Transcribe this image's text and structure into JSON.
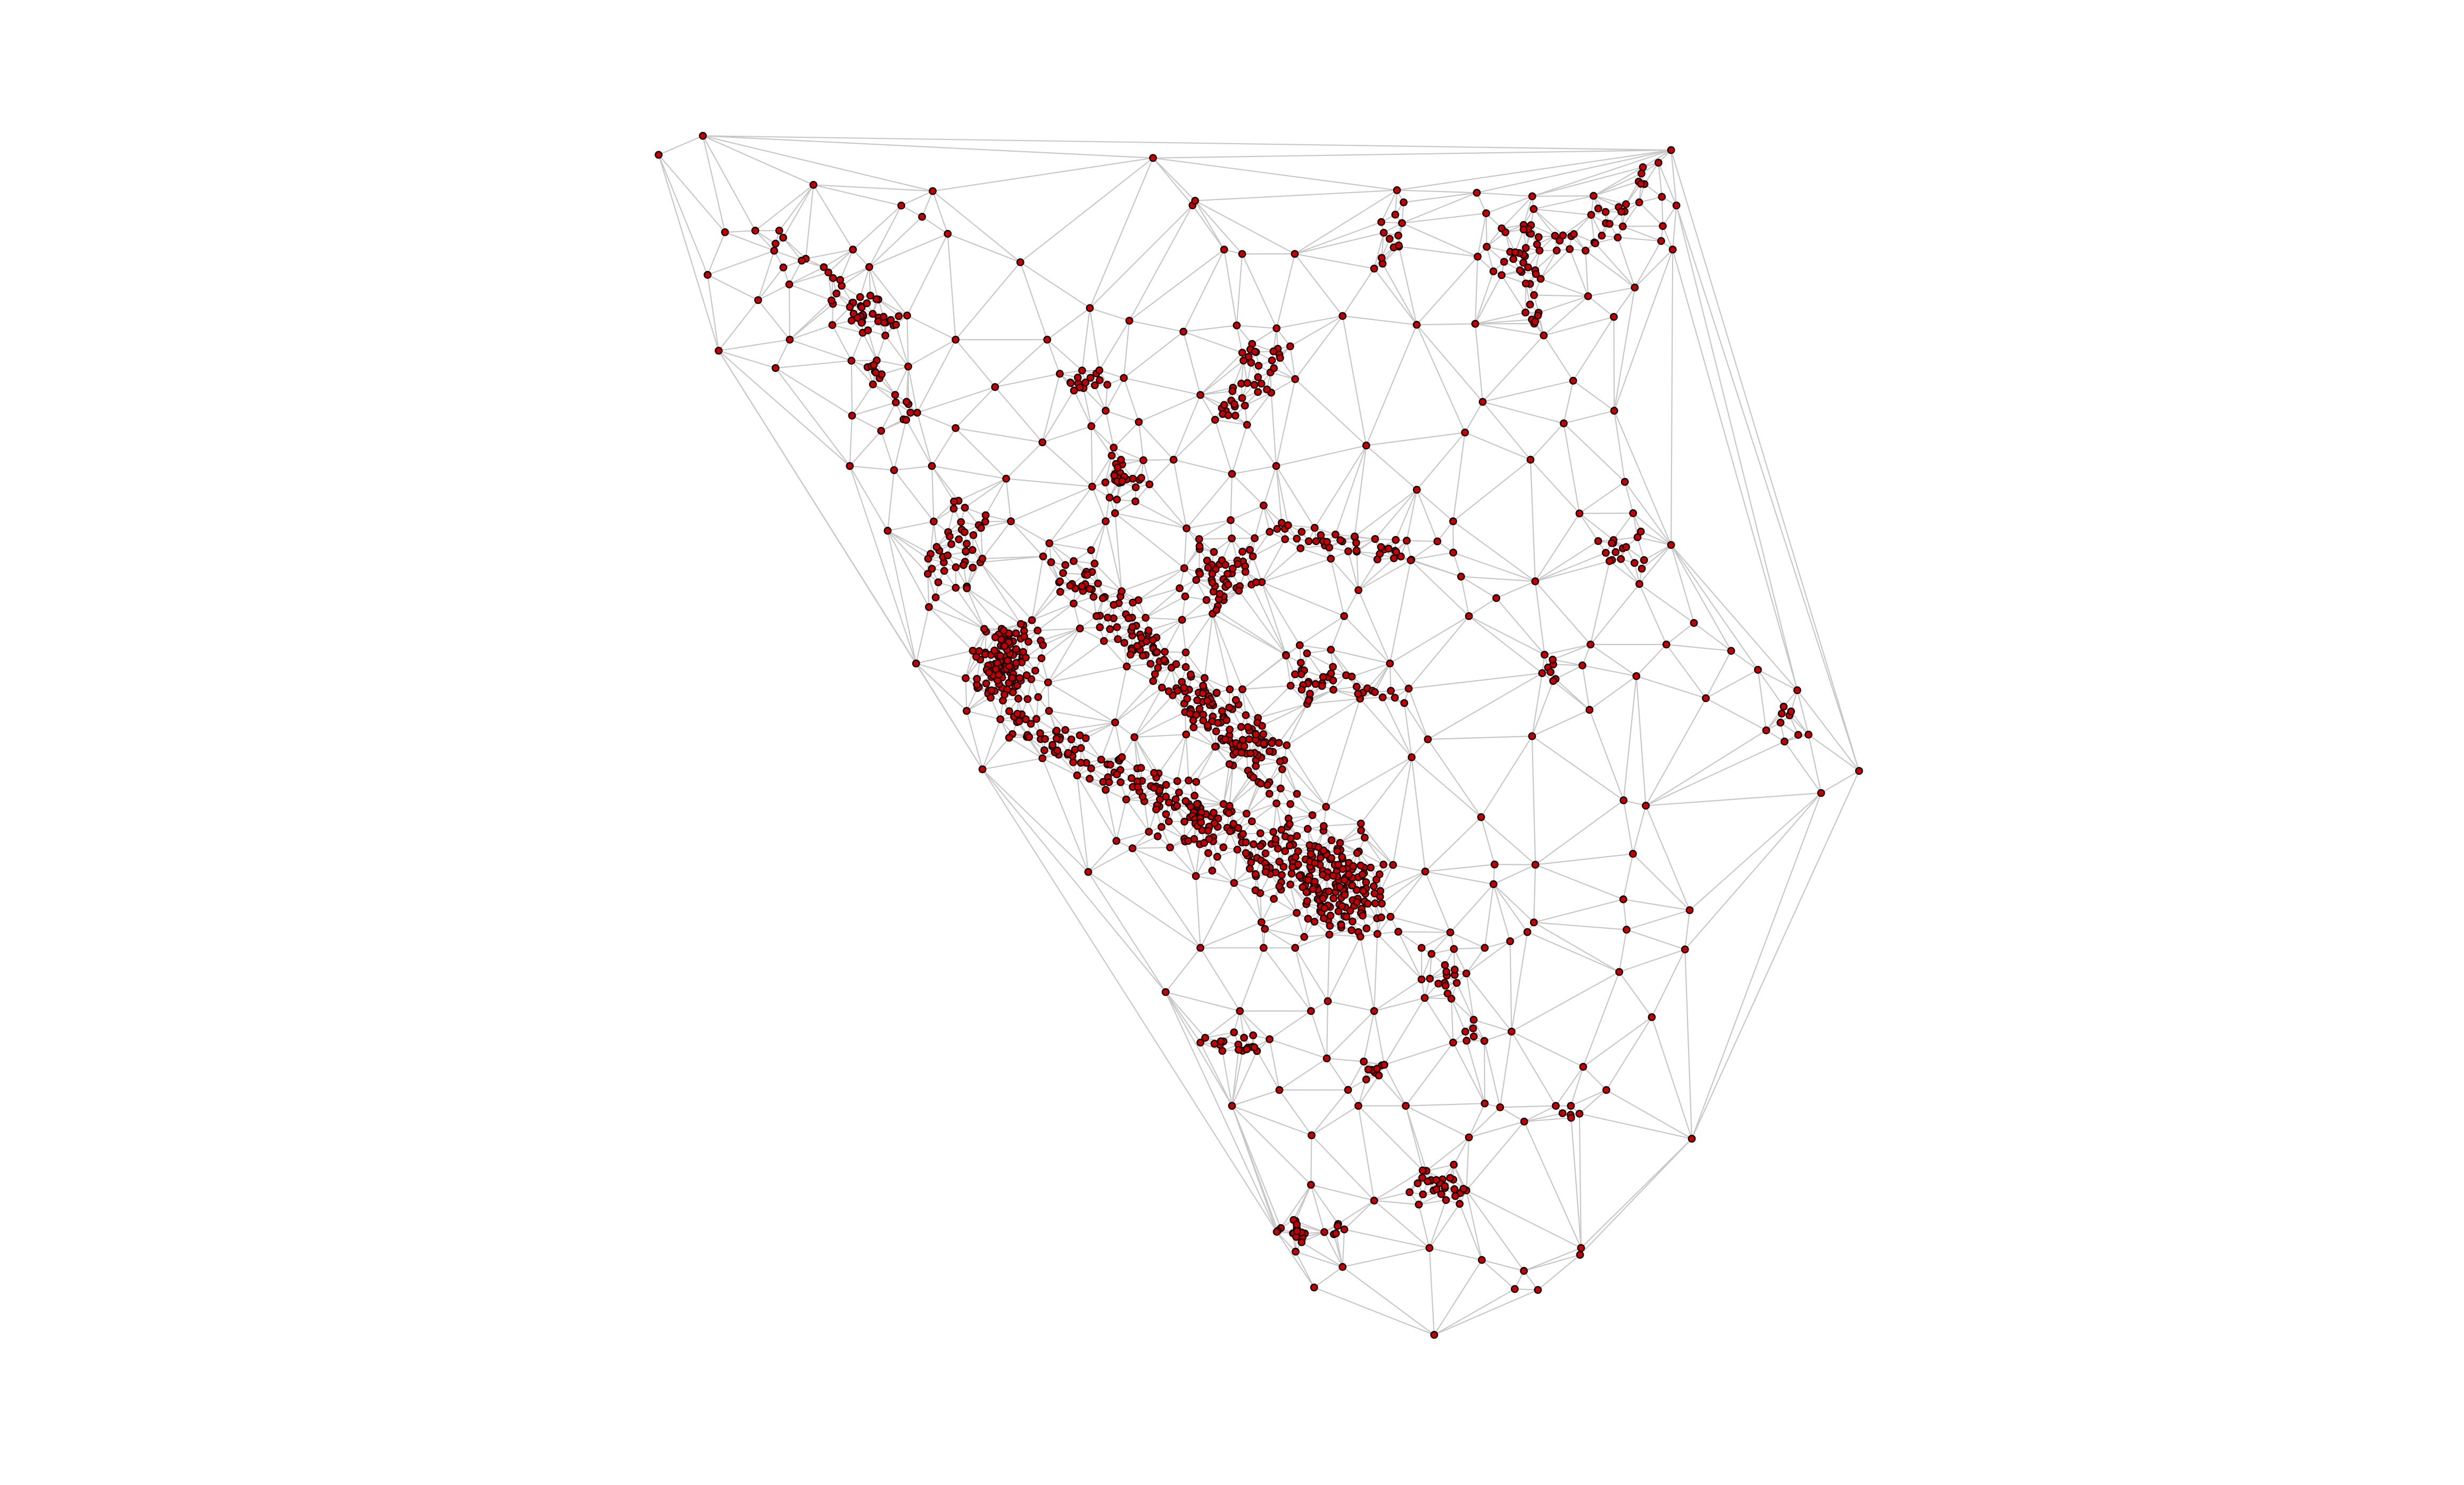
{
  "diagram": {
    "type": "delaunay-triangulation-graph",
    "node_color": "#c40000",
    "node_outline_color": "#1a0000",
    "edge_color": "#c8c8c8",
    "background": "#ffffff",
    "title": ""
  }
}
